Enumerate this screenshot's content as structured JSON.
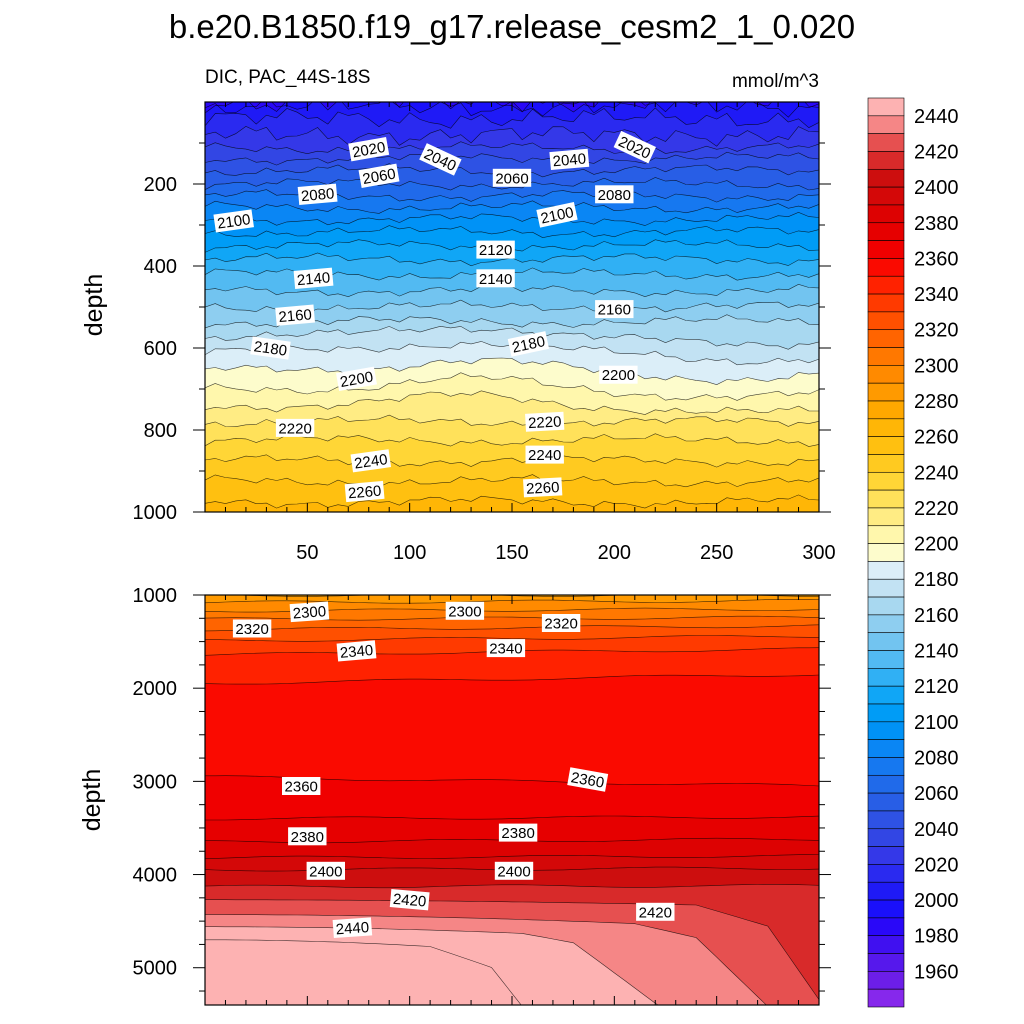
{
  "figure_title": "b.e20.B1850.f19_g17.release_cesm2_1_0.020",
  "chart_data": [
    {
      "type": "contour",
      "panel": "upper",
      "left_label": "DIC, PAC_44S-18S",
      "right_label": "mmol/m^3",
      "xlabel": "",
      "ylabel": "depth",
      "xlim": [
        0,
        300
      ],
      "ylim": [
        1000,
        0
      ],
      "x_ticks": [
        50,
        100,
        150,
        200,
        250,
        300
      ],
      "y_ticks": [
        200,
        400,
        600,
        800,
        1000
      ],
      "contour_interval": 10,
      "contour_profile": {
        "depths": [
          0,
          20,
          60,
          100,
          150,
          200,
          300,
          400,
          500,
          600,
          700,
          800,
          900,
          1000
        ],
        "values": [
          1995,
          2005,
          2015,
          2025,
          2045,
          2060,
          2095,
          2125,
          2150,
          2178,
          2200,
          2225,
          2245,
          2265
        ]
      },
      "contour_labels": [
        {
          "value": "2020",
          "x": 80,
          "depth": 115,
          "angle": -10
        },
        {
          "value": "2040",
          "x": 115,
          "depth": 140,
          "angle": 25
        },
        {
          "value": "2020",
          "x": 210,
          "depth": 110,
          "angle": 25
        },
        {
          "value": "2040",
          "x": 178,
          "depth": 140,
          "angle": -5
        },
        {
          "value": "2060",
          "x": 85,
          "depth": 180,
          "angle": -10
        },
        {
          "value": "2060",
          "x": 150,
          "depth": 185,
          "angle": 0
        },
        {
          "value": "2080",
          "x": 55,
          "depth": 225,
          "angle": -5
        },
        {
          "value": "2080",
          "x": 200,
          "depth": 225,
          "angle": 0
        },
        {
          "value": "2100",
          "x": 14,
          "depth": 290,
          "angle": -8
        },
        {
          "value": "2100",
          "x": 172,
          "depth": 275,
          "angle": -12
        },
        {
          "value": "2120",
          "x": 142,
          "depth": 360,
          "angle": 0
        },
        {
          "value": "2140",
          "x": 53,
          "depth": 430,
          "angle": -5
        },
        {
          "value": "2140",
          "x": 142,
          "depth": 430,
          "angle": 0
        },
        {
          "value": "2160",
          "x": 44,
          "depth": 520,
          "angle": -5
        },
        {
          "value": "2160",
          "x": 200,
          "depth": 505,
          "angle": 0
        },
        {
          "value": "2180",
          "x": 32,
          "depth": 600,
          "angle": 8
        },
        {
          "value": "2180",
          "x": 158,
          "depth": 590,
          "angle": -12
        },
        {
          "value": "2200",
          "x": 74,
          "depth": 675,
          "angle": -10
        },
        {
          "value": "2200",
          "x": 202,
          "depth": 665,
          "angle": 0
        },
        {
          "value": "2220",
          "x": 44,
          "depth": 795,
          "angle": 0
        },
        {
          "value": "2220",
          "x": 166,
          "depth": 780,
          "angle": -3
        },
        {
          "value": "2240",
          "x": 81,
          "depth": 875,
          "angle": -8
        },
        {
          "value": "2240",
          "x": 166,
          "depth": 860,
          "angle": 0
        },
        {
          "value": "2260",
          "x": 78,
          "depth": 950,
          "angle": -5
        },
        {
          "value": "2260",
          "x": 165,
          "depth": 940,
          "angle": -3
        }
      ]
    },
    {
      "type": "contour",
      "panel": "lower",
      "ylabel": "depth",
      "xlim": [
        0,
        300
      ],
      "ylim": [
        5400,
        1000
      ],
      "y_ticks": [
        1000,
        2000,
        3000,
        4000,
        5000
      ],
      "contour_levels": [
        2280,
        2290,
        2300,
        2310,
        2320,
        2330,
        2340,
        2350,
        2360,
        2370,
        2380,
        2390,
        2400,
        2410,
        2420,
        2430,
        2440,
        2450
      ],
      "contour_labels": [
        {
          "value": "2300",
          "x": 51,
          "depth": 1180,
          "angle": -4
        },
        {
          "value": "2300",
          "x": 127,
          "depth": 1170,
          "angle": 0
        },
        {
          "value": "2320",
          "x": 23,
          "depth": 1360,
          "angle": 0
        },
        {
          "value": "2320",
          "x": 174,
          "depth": 1300,
          "angle": 0
        },
        {
          "value": "2340",
          "x": 74,
          "depth": 1600,
          "angle": -5
        },
        {
          "value": "2340",
          "x": 147,
          "depth": 1570,
          "angle": 0
        },
        {
          "value": "2360",
          "x": 47,
          "depth": 3050,
          "angle": 0
        },
        {
          "value": "2360",
          "x": 187,
          "depth": 2980,
          "angle": 10
        },
        {
          "value": "2380",
          "x": 50,
          "depth": 3590,
          "angle": 0
        },
        {
          "value": "2380",
          "x": 153,
          "depth": 3550,
          "angle": 0
        },
        {
          "value": "2400",
          "x": 59,
          "depth": 3960,
          "angle": 0
        },
        {
          "value": "2400",
          "x": 151,
          "depth": 3960,
          "angle": 0
        },
        {
          "value": "2420",
          "x": 100,
          "depth": 4270,
          "angle": 5
        },
        {
          "value": "2420",
          "x": 220,
          "depth": 4400,
          "angle": 0
        },
        {
          "value": "2440",
          "x": 72,
          "depth": 4570,
          "angle": -4
        }
      ]
    },
    {
      "type": "colorbar",
      "tick_labels": [
        "2440",
        "2420",
        "2400",
        "2380",
        "2360",
        "2340",
        "2320",
        "2300",
        "2280",
        "2260",
        "2240",
        "2220",
        "2200",
        "2180",
        "2160",
        "2140",
        "2120",
        "2100",
        "2080",
        "2060",
        "2040",
        "2020",
        "2000",
        "1980",
        "1960"
      ],
      "levels_high_to_low": [
        2450,
        2440,
        2430,
        2420,
        2410,
        2400,
        2390,
        2380,
        2370,
        2360,
        2350,
        2340,
        2330,
        2320,
        2310,
        2300,
        2290,
        2280,
        2270,
        2260,
        2250,
        2240,
        2230,
        2220,
        2210,
        2200,
        2190,
        2180,
        2170,
        2160,
        2150,
        2140,
        2130,
        2120,
        2110,
        2100,
        2090,
        2080,
        2070,
        2060,
        2050,
        2040,
        2030,
        2020,
        2010,
        2000,
        1990,
        1980,
        1970,
        1960,
        1950
      ],
      "colors_high_to_low": [
        "#FDB2B2",
        "#F58686",
        "#E65050",
        "#D82A2A",
        "#CD0E0E",
        "#D40808",
        "#DD0202",
        "#E60000",
        "#F00000",
        "#FA0A00",
        "#FF2200",
        "#FF3A00",
        "#FF5000",
        "#FF6400",
        "#FF7800",
        "#FF8A00",
        "#FF9A00",
        "#FFA800",
        "#FFB606",
        "#FFC010",
        "#FFCA20",
        "#FFD636",
        "#FFE15A",
        "#FFEC84",
        "#FFF7AC",
        "#FDFCCC",
        "#DBEEF8",
        "#C2E2F3",
        "#A8D8F0",
        "#8ECEF0",
        "#72C4F0",
        "#52BAF2",
        "#30B0F4",
        "#10A6F6",
        "#009CF6",
        "#0092F6",
        "#0A86F4",
        "#1678F0",
        "#206AEA",
        "#285EE6",
        "#2E52E4",
        "#3246E4",
        "#3438E8",
        "#2A2AF0",
        "#1F1AF6",
        "#1A10FA",
        "#2A08F8",
        "#4010F0",
        "#5618EC",
        "#6C1EE8",
        "#8628EC"
      ]
    }
  ]
}
